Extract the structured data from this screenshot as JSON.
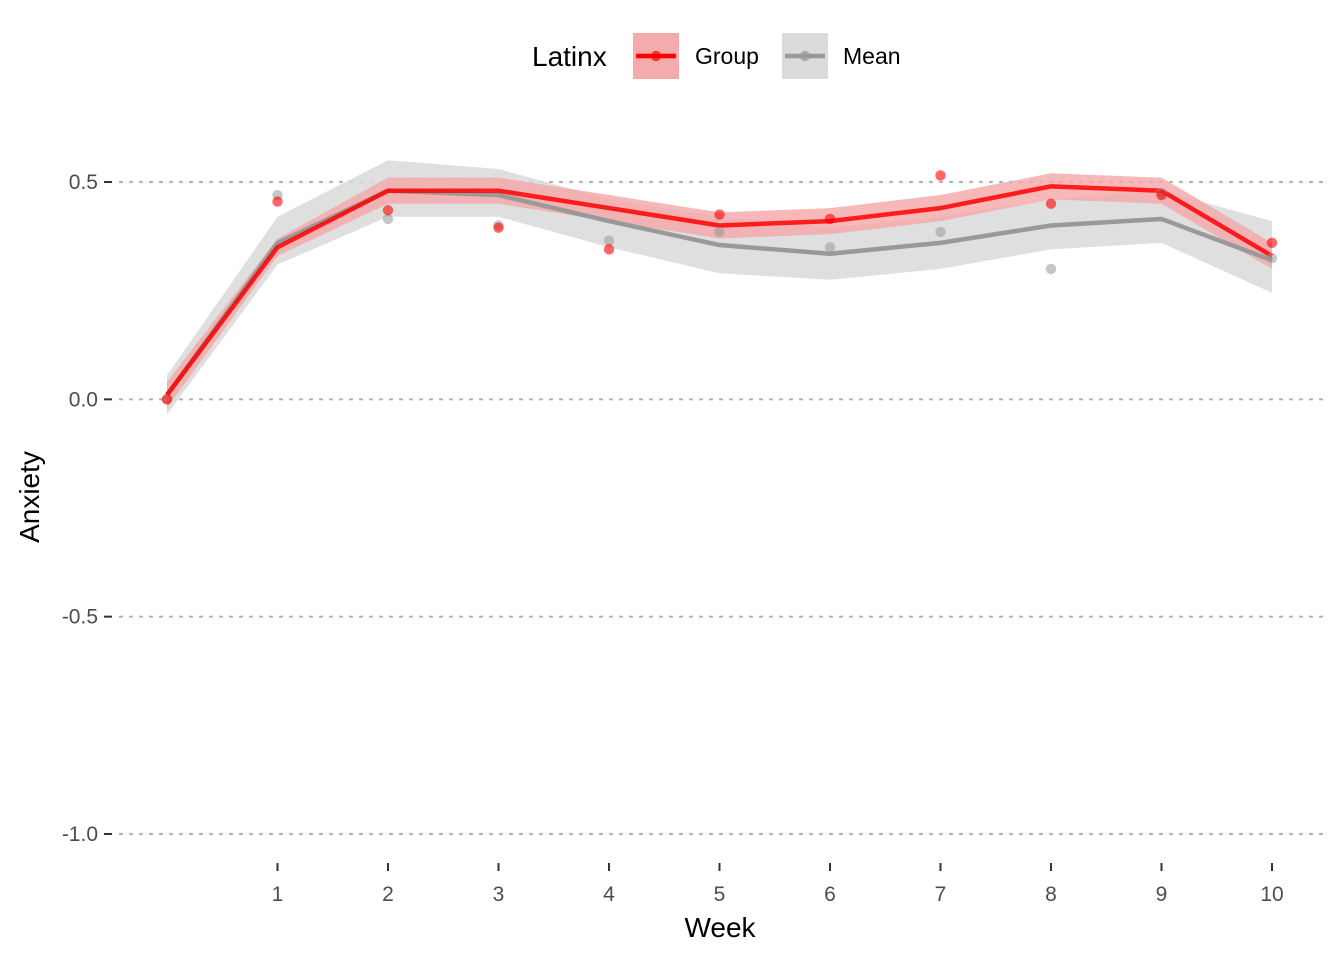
{
  "chart_data": {
    "type": "line",
    "xlabel": "Week",
    "ylabel": "Anxiety",
    "xlim": [
      0,
      10
    ],
    "ylim": [
      -1.0,
      0.5
    ],
    "x_ticks": [
      1,
      2,
      3,
      4,
      5,
      6,
      7,
      8,
      9,
      10
    ],
    "y_ticks": [
      0.5,
      0.0,
      -0.5,
      -1.0
    ],
    "y_tick_labels": [
      "0.5",
      "0.0",
      "-0.5",
      "-1.0"
    ],
    "grid": "horizontal dotted",
    "legend": {
      "title": "Latinx",
      "position": "top",
      "entries": [
        "Group",
        "Mean"
      ]
    },
    "x": [
      0,
      1,
      2,
      3,
      4,
      5,
      6,
      7,
      8,
      9,
      10
    ],
    "series": [
      {
        "name": "Group",
        "color": "#ff0000",
        "band_color": "#f4a6a6",
        "fit": [
          0.01,
          0.35,
          0.48,
          0.48,
          0.44,
          0.4,
          0.41,
          0.44,
          0.49,
          0.48,
          0.33
        ],
        "lower": [
          -0.02,
          0.33,
          0.45,
          0.45,
          0.41,
          0.37,
          0.38,
          0.41,
          0.46,
          0.45,
          0.3
        ],
        "upper": [
          0.04,
          0.37,
          0.51,
          0.51,
          0.47,
          0.43,
          0.44,
          0.47,
          0.52,
          0.51,
          0.36
        ],
        "points": [
          0.0,
          0.455,
          0.435,
          0.395,
          0.345,
          0.425,
          0.415,
          0.515,
          0.45,
          0.47,
          0.36
        ]
      },
      {
        "name": "Mean",
        "color": "#999999",
        "band_color": "#d9d9d9",
        "fit": [
          0.01,
          0.36,
          0.48,
          0.47,
          0.41,
          0.355,
          0.335,
          0.36,
          0.4,
          0.415,
          0.32
        ],
        "lower": [
          -0.035,
          0.31,
          0.42,
          0.42,
          0.35,
          0.29,
          0.275,
          0.3,
          0.345,
          0.36,
          0.245
        ],
        "upper": [
          0.055,
          0.42,
          0.55,
          0.53,
          0.46,
          0.42,
          0.395,
          0.42,
          0.46,
          0.48,
          0.41
        ],
        "points": [
          0.0,
          0.47,
          0.415,
          0.4,
          0.365,
          0.385,
          0.35,
          0.385,
          0.3,
          0.475,
          0.325
        ]
      }
    ]
  }
}
